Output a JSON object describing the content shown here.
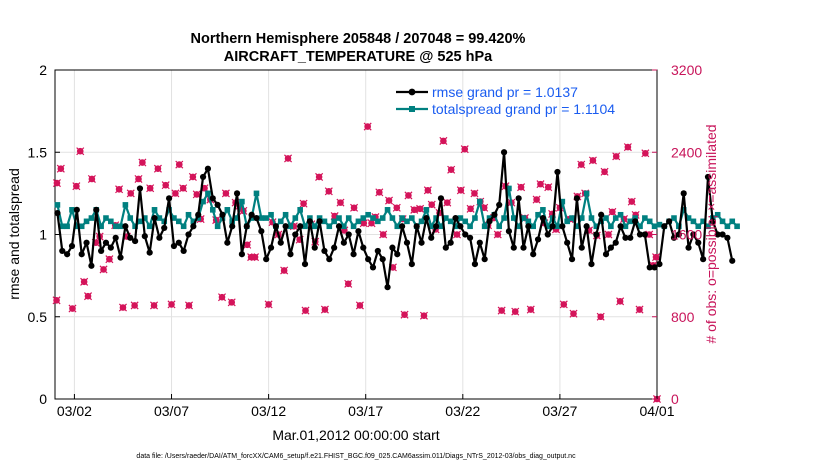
{
  "chart_data": {
    "type": "line",
    "title_line1": "Northern Hemisphere 205848 / 207048 = 99.420%",
    "title_line2": "AIRCRAFT_TEMPERATURE @ 525 hPa",
    "xlabel": "Mar.01,2012 00:00:00 start",
    "ylabel_left": "rmse and totalspread",
    "ylabel_right": "# of obs: o=possible; ×=assimilated",
    "footer": "data file: /Users/raeder/DAI/ATM_forcXX/CAM6_setup/f.e21.FHIST_BGC.f09_025.CAM6assim.011/Diags_NTrS_2012-03/obs_diag_output.nc",
    "xlim": [
      0,
      31
    ],
    "ylim_left": [
      0,
      2
    ],
    "ylim_right": [
      0,
      3200
    ],
    "x_ticks": [
      {
        "x": 1,
        "label": "03/02"
      },
      {
        "x": 6,
        "label": "03/07"
      },
      {
        "x": 11,
        "label": "03/12"
      },
      {
        "x": 16,
        "label": "03/17"
      },
      {
        "x": 21,
        "label": "03/22"
      },
      {
        "x": 26,
        "label": "03/27"
      },
      {
        "x": 31,
        "label": "04/01"
      }
    ],
    "y_ticks_left": [
      "0",
      "0.5",
      "1",
      "1.5",
      "2"
    ],
    "y_ticks_right": [
      "0",
      "800",
      "1600",
      "2400",
      "3200"
    ],
    "grid": true,
    "legend_position": "top-right",
    "series": [
      {
        "name": "rmse grand pr = 1.0137",
        "color": "#000000",
        "x_start": 0.125,
        "x_step": 0.25,
        "values": [
          1.13,
          0.9,
          0.88,
          0.93,
          1.15,
          0.88,
          0.95,
          0.81,
          1.15,
          0.9,
          0.95,
          0.92,
          0.98,
          0.86,
          1.05,
          0.98,
          0.96,
          1.28,
          0.99,
          0.89,
          1.1,
          0.98,
          1.04,
          1.22,
          0.93,
          0.95,
          0.9,
          1.0,
          1.05,
          1.12,
          1.35,
          1.4,
          1.22,
          1.18,
          1.12,
          0.95,
          1.05,
          1.25,
          0.88,
          1.05,
          1.12,
          1.1,
          1.02,
          0.85,
          0.92,
          1.05,
          0.95,
          1.05,
          0.88,
          1.0,
          1.05,
          0.82,
          1.08,
          0.92,
          1.08,
          0.9,
          0.85,
          0.92,
          1.05,
          0.95,
          1.0,
          0.88,
          1.02,
          0.92,
          0.85,
          0.8,
          0.9,
          0.85,
          0.68,
          0.92,
          0.88,
          1.05,
          0.95,
          0.82,
          1.05,
          0.95,
          1.1,
          0.98,
          1.05,
          1.22,
          0.92,
          0.95,
          1.1,
          1.05,
          1.0,
          0.98,
          0.82,
          0.95,
          0.85,
          1.08,
          1.12,
          1.18,
          1.5,
          1.02,
          0.92,
          1.22,
          0.92,
          1.05,
          0.88,
          0.97,
          1.1,
          1.0,
          1.05,
          1.38,
          1.05,
          0.95,
          0.85,
          1.22,
          0.92,
          1.05,
          0.82,
          1.0,
          1.12,
          0.88,
          0.92,
          0.95,
          1.05,
          0.98,
          0.98,
          1.08,
          1.0,
          1.0,
          0.8,
          0.8,
          0.82,
          1.05,
          1.08,
          0.98,
          1.0,
          1.25,
          0.92,
          1.0,
          0.95,
          0.85,
          1.35,
          1.08,
          1.0,
          1.0,
          0.98,
          0.84
        ]
      },
      {
        "name": "totalspread grand pr = 1.1104",
        "color": "#008080",
        "x_start": 0.125,
        "x_step": 0.25,
        "values": [
          1.18,
          1.05,
          1.05,
          1.15,
          1.05,
          1.05,
          1.08,
          1.1,
          1.15,
          1.05,
          1.1,
          1.08,
          1.05,
          1.05,
          1.18,
          1.1,
          1.05,
          1.08,
          1.1,
          1.05,
          1.15,
          1.1,
          1.08,
          1.15,
          1.1,
          1.08,
          1.05,
          1.12,
          1.08,
          1.1,
          1.2,
          1.25,
          1.15,
          1.05,
          1.1,
          1.15,
          1.08,
          1.1,
          1.2,
          1.05,
          1.1,
          1.25,
          1.1,
          1.1,
          1.12,
          1.05,
          1.08,
          1.12,
          1.05,
          1.1,
          1.15,
          1.05,
          1.1,
          1.05,
          1.1,
          1.08,
          1.05,
          1.08,
          1.1,
          1.05,
          1.1,
          1.05,
          1.08,
          1.1,
          1.12,
          1.1,
          1.08,
          1.1,
          1.15,
          1.1,
          1.05,
          1.1,
          1.08,
          1.1,
          1.05,
          1.08,
          1.15,
          1.05,
          1.1,
          1.05,
          1.1,
          1.08,
          1.05,
          1.1,
          1.08,
          1.05,
          1.1,
          1.2,
          1.05,
          1.1,
          1.12,
          1.05,
          1.1,
          1.28,
          1.1,
          1.05,
          1.1,
          1.08,
          1.05,
          1.12,
          1.15,
          1.05,
          1.1,
          1.05,
          1.2,
          1.08,
          1.1,
          1.05,
          1.1,
          1.25,
          1.1,
          1.05,
          1.08,
          1.1,
          1.05,
          1.1,
          1.12,
          1.05,
          1.08,
          1.1,
          1.05,
          1.1,
          1.08,
          1.05,
          1.06,
          1.05,
          1.08,
          1.1,
          1.05,
          1.15,
          1.1,
          1.08,
          1.05,
          1.08,
          1.05,
          1.1,
          1.12,
          1.08,
          1.05,
          1.08,
          1.05
        ]
      }
    ],
    "obs_count_points": [
      [
        0.08,
        960
      ],
      [
        0.1,
        2100
      ],
      [
        0.3,
        2240
      ],
      [
        0.9,
        880
      ],
      [
        1.1,
        2070
      ],
      [
        1.3,
        2410
      ],
      [
        1.5,
        1140
      ],
      [
        1.7,
        1000
      ],
      [
        1.9,
        2140
      ],
      [
        2.1,
        1520
      ],
      [
        2.3,
        1580
      ],
      [
        2.5,
        1260
      ],
      [
        2.8,
        1360
      ],
      [
        3.1,
        1690
      ],
      [
        3.3,
        2040
      ],
      [
        3.5,
        890
      ],
      [
        3.7,
        1580
      ],
      [
        3.9,
        2000
      ],
      [
        4.1,
        910
      ],
      [
        4.3,
        2140
      ],
      [
        4.5,
        2300
      ],
      [
        4.9,
        2050
      ],
      [
        5.1,
        910
      ],
      [
        5.3,
        2240
      ],
      [
        5.7,
        2080
      ],
      [
        6.0,
        920
      ],
      [
        6.2,
        2000
      ],
      [
        6.4,
        2280
      ],
      [
        6.6,
        2050
      ],
      [
        6.9,
        910
      ],
      [
        7.1,
        2160
      ],
      [
        7.3,
        1990
      ],
      [
        7.5,
        1750
      ],
      [
        7.7,
        2050
      ],
      [
        8.0,
        1940
      ],
      [
        8.3,
        1740
      ],
      [
        8.6,
        990
      ],
      [
        8.8,
        2000
      ],
      [
        9.1,
        940
      ],
      [
        9.3,
        1910
      ],
      [
        9.5,
        1880
      ],
      [
        9.7,
        1830
      ],
      [
        9.9,
        1500
      ],
      [
        10.1,
        1380
      ],
      [
        10.3,
        1380
      ],
      [
        11.0,
        920
      ],
      [
        11.2,
        1720
      ],
      [
        11.5,
        1600
      ],
      [
        11.8,
        1250
      ],
      [
        12.0,
        2340
      ],
      [
        12.3,
        1680
      ],
      [
        12.6,
        1550
      ],
      [
        12.8,
        1900
      ],
      [
        12.9,
        860
      ],
      [
        13.2,
        1700
      ],
      [
        13.4,
        1530
      ],
      [
        13.6,
        2160
      ],
      [
        13.9,
        870
      ],
      [
        14.1,
        2020
      ],
      [
        14.4,
        1780
      ],
      [
        14.7,
        1910
      ],
      [
        14.9,
        1640
      ],
      [
        15.1,
        1120
      ],
      [
        15.4,
        1860
      ],
      [
        15.7,
        910
      ],
      [
        15.9,
        1710
      ],
      [
        16.1,
        2650
      ],
      [
        16.3,
        1710
      ],
      [
        16.5,
        1770
      ],
      [
        16.7,
        2010
      ],
      [
        16.9,
        1600
      ],
      [
        17.2,
        1930
      ],
      [
        17.4,
        1280
      ],
      [
        17.6,
        1860
      ],
      [
        17.9,
        1750
      ],
      [
        18.0,
        820
      ],
      [
        18.2,
        1980
      ],
      [
        18.5,
        1840
      ],
      [
        18.8,
        1850
      ],
      [
        19.0,
        810
      ],
      [
        19.2,
        2030
      ],
      [
        19.4,
        1890
      ],
      [
        19.6,
        1650
      ],
      [
        19.8,
        1810
      ],
      [
        20.0,
        2510
      ],
      [
        20.2,
        1910
      ],
      [
        20.4,
        2230
      ],
      [
        20.7,
        1600
      ],
      [
        20.9,
        2030
      ],
      [
        21.1,
        2430
      ],
      [
        21.4,
        1850
      ],
      [
        21.6,
        2000
      ],
      [
        21.9,
        1920
      ],
      [
        22.1,
        1860
      ],
      [
        22.3,
        1690
      ],
      [
        22.6,
        1760
      ],
      [
        22.8,
        1600
      ],
      [
        23.0,
        860
      ],
      [
        23.2,
        2070
      ],
      [
        23.5,
        1910
      ],
      [
        23.7,
        850
      ],
      [
        24.0,
        2060
      ],
      [
        24.2,
        1760
      ],
      [
        24.5,
        870
      ],
      [
        24.8,
        1940
      ],
      [
        25.0,
        2090
      ],
      [
        25.2,
        1710
      ],
      [
        25.4,
        2060
      ],
      [
        25.6,
        1800
      ],
      [
        25.8,
        1650
      ],
      [
        26.0,
        1860
      ],
      [
        26.2,
        920
      ],
      [
        26.5,
        1750
      ],
      [
        26.7,
        830
      ],
      [
        26.9,
        1970
      ],
      [
        27.1,
        2280
      ],
      [
        27.3,
        2000
      ],
      [
        27.5,
        1640
      ],
      [
        27.7,
        2320
      ],
      [
        27.9,
        1590
      ],
      [
        28.1,
        800
      ],
      [
        28.3,
        2210
      ],
      [
        28.5,
        1600
      ],
      [
        28.7,
        1820
      ],
      [
        28.9,
        2360
      ],
      [
        29.1,
        950
      ],
      [
        29.3,
        1750
      ],
      [
        29.5,
        2450
      ],
      [
        29.7,
        1920
      ],
      [
        29.9,
        1790
      ],
      [
        30.1,
        870
      ],
      [
        30.4,
        2390
      ],
      [
        30.6,
        1600
      ],
      [
        30.8,
        1300
      ],
      [
        30.95,
        1380
      ],
      [
        31.0,
        0
      ]
    ]
  }
}
